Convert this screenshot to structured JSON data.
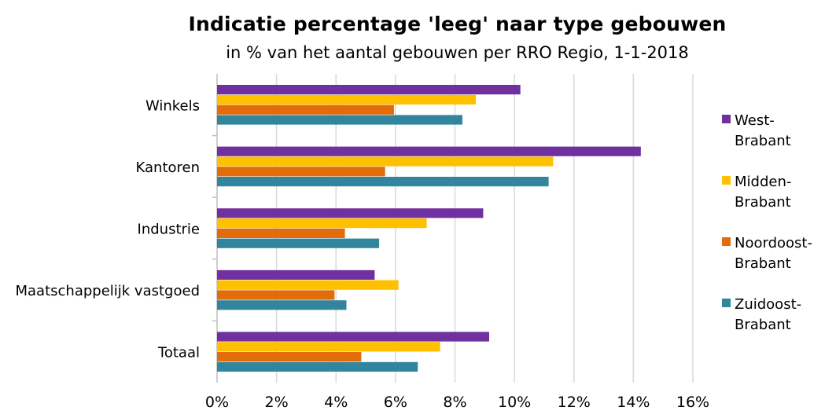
{
  "chart_data": {
    "type": "bar",
    "orientation": "horizontal",
    "title": "Indicatie percentage 'leeg' naar type gebouwen",
    "subtitle": "in % van het aantal gebouwen per RRO Regio, 1-1-2018",
    "categories": [
      "Winkels",
      "Kantoren",
      "Industrie",
      "Maatschappelijk vastgoed",
      "Totaal"
    ],
    "series": [
      {
        "name": "West-Brabant",
        "legend_lines": [
          "West-",
          "Brabant"
        ],
        "color": "#7030A0",
        "values": [
          10.2,
          14.25,
          8.95,
          5.3,
          9.15
        ]
      },
      {
        "name": "Midden-Brabant",
        "legend_lines": [
          "Midden-",
          "Brabant"
        ],
        "color": "#FFC000",
        "values": [
          8.7,
          11.3,
          7.05,
          6.1,
          7.5
        ]
      },
      {
        "name": "Noordoost-Brabant",
        "legend_lines": [
          "Noordoost-",
          "Brabant"
        ],
        "color": "#E36C0A",
        "values": [
          5.95,
          5.65,
          4.3,
          3.95,
          4.85
        ]
      },
      {
        "name": "Zuidoost-Brabant",
        "legend_lines": [
          "Zuidoost-",
          "Brabant"
        ],
        "color": "#31859C",
        "values": [
          8.25,
          11.15,
          5.45,
          4.35,
          6.75
        ]
      }
    ],
    "xlim": [
      0,
      16
    ],
    "x_ticks": [
      "0%",
      "2%",
      "4%",
      "6%",
      "8%",
      "10%",
      "12%",
      "14%",
      "16%"
    ],
    "grid": true,
    "legend_position": "right"
  }
}
